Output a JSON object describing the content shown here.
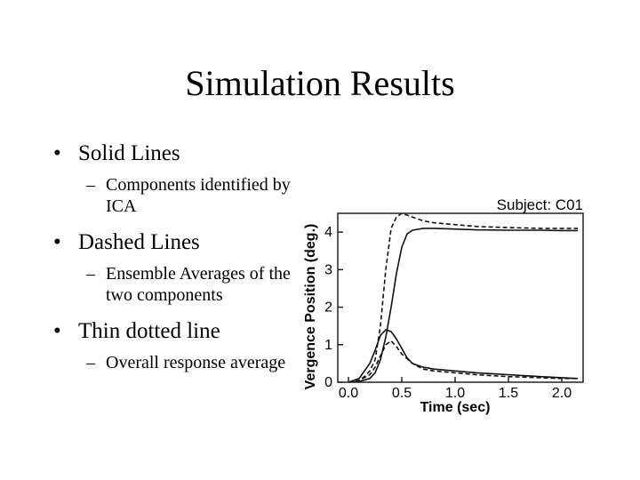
{
  "slide": {
    "title": "Simulation Results",
    "bullets": [
      {
        "text": "Solid Lines",
        "sub": "Components identified by ICA"
      },
      {
        "text": "Dashed Lines",
        "sub": "Ensemble Averages of the two components"
      },
      {
        "text": "Thin dotted line",
        "sub": "Overall response average"
      }
    ]
  },
  "chart_data": {
    "type": "line",
    "title": "Subject: C01",
    "xlabel": "Time (sec)",
    "ylabel": "Vergence Position (deg.)",
    "xlim": [
      -0.1,
      2.2
    ],
    "ylim": [
      0,
      4.5
    ],
    "xticks": [
      "0.0",
      "0.5",
      "1.0",
      "1.5",
      "2.0"
    ],
    "yticks": [
      "0",
      "1",
      "2",
      "3",
      "4"
    ],
    "grid": false,
    "series": [
      {
        "style": "solid",
        "x": [
          0.0,
          0.1,
          0.2,
          0.25,
          0.3,
          0.35,
          0.4,
          0.45,
          0.5,
          0.55,
          0.6,
          0.7,
          0.8,
          1.0,
          1.2,
          1.5,
          1.8,
          2.0,
          2.15
        ],
        "y": [
          0,
          0.02,
          0.1,
          0.25,
          0.6,
          1.2,
          2.0,
          2.9,
          3.6,
          3.95,
          4.05,
          4.1,
          4.1,
          4.08,
          4.06,
          4.05,
          4.05,
          4.04,
          4.04
        ]
      },
      {
        "style": "solid",
        "x": [
          0.0,
          0.1,
          0.2,
          0.25,
          0.3,
          0.35,
          0.4,
          0.45,
          0.5,
          0.55,
          0.6,
          0.7,
          0.8,
          1.0,
          1.2,
          1.5,
          1.8,
          2.0,
          2.15
        ],
        "y": [
          0,
          0.1,
          0.5,
          0.85,
          1.25,
          1.4,
          1.35,
          1.15,
          0.9,
          0.65,
          0.5,
          0.4,
          0.35,
          0.3,
          0.25,
          0.2,
          0.15,
          0.12,
          0.1
        ]
      },
      {
        "style": "dashed",
        "x": [
          0.0,
          0.1,
          0.15,
          0.2,
          0.25,
          0.3,
          0.35,
          0.4,
          0.45,
          0.5,
          0.6,
          0.7,
          0.8,
          1.0,
          1.2,
          1.5,
          1.8,
          2.0,
          2.15
        ],
        "y": [
          0,
          0.05,
          0.15,
          0.3,
          0.6,
          1.5,
          3.0,
          4.1,
          4.4,
          4.5,
          4.4,
          4.3,
          4.25,
          4.2,
          4.15,
          4.12,
          4.1,
          4.1,
          4.1
        ]
      },
      {
        "style": "dashed",
        "x": [
          0.0,
          0.1,
          0.2,
          0.25,
          0.3,
          0.35,
          0.4,
          0.45,
          0.5,
          0.6,
          0.7,
          0.8,
          1.0,
          1.2,
          1.5,
          1.8,
          2.0,
          2.15
        ],
        "y": [
          0,
          0.05,
          0.2,
          0.4,
          0.7,
          1.0,
          1.1,
          0.95,
          0.75,
          0.5,
          0.35,
          0.3,
          0.25,
          0.2,
          0.15,
          0.12,
          0.1,
          0.1
        ]
      }
    ]
  }
}
